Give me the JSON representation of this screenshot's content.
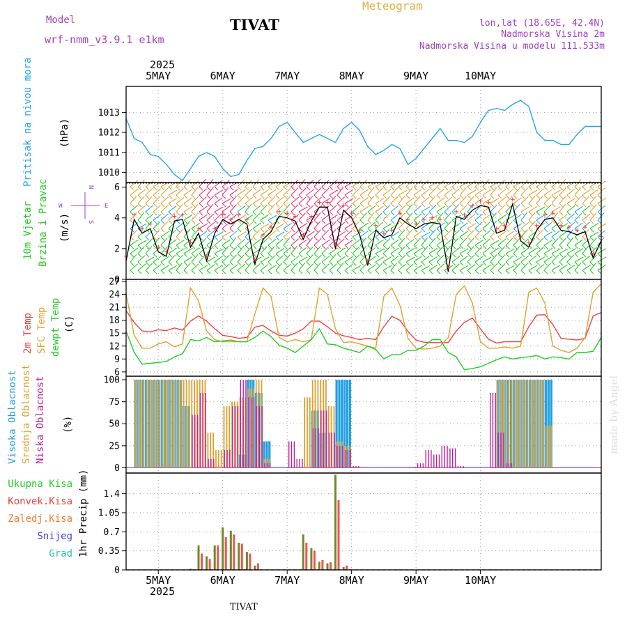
{
  "header": {
    "model_label": "Model",
    "model_name": "wrf-nmm_v3.9.1 e1km",
    "station": "TIVAT",
    "title": "Meteogram",
    "lonlat": "lon,lat (18.65E, 42.4N)",
    "elevation": "Nadmorska Visina 2m",
    "model_elevation": "Nadmorska Visina u modelu 111.533m",
    "footer_station": "TIVAT",
    "watermark": "made by Angel"
  },
  "colors": {
    "pressure": "#22a6e6",
    "wind_black": "#000000",
    "wind_red": "#ff3030",
    "temp_2m": "#ee4040",
    "temp_sfc": "#e0a030",
    "dewpoint": "#22cc22",
    "cloud_high": "#22a0e0",
    "cloud_mid": "#e0a030",
    "cloud_low": "#c0209a",
    "precip_total": "#6e8a28",
    "precip_conv": "#ee4040",
    "precip_frz": "#f08030",
    "snow": "#4040e0",
    "hail": "#30c0c0",
    "compass": "#a040c0"
  },
  "chart_data": [
    {
      "type": "line",
      "name": "pressure",
      "ylabel_1": "Pritisak na nivou mora",
      "ylabel_2": "(hPa)",
      "x_start": "2025-05-04T12:00",
      "x_step_hours": 3,
      "ylim": [
        1009.5,
        1014.3
      ],
      "yticks": [
        1010,
        1011,
        1012,
        1013
      ],
      "values": [
        1012.7,
        1011.7,
        1011.5,
        1010.9,
        1010.8,
        1010.4,
        1009.9,
        1009.6,
        1010.2,
        1010.8,
        1011.0,
        1010.8,
        1010.2,
        1009.8,
        1009.9,
        1010.6,
        1011.2,
        1011.3,
        1011.7,
        1012.3,
        1012.5,
        1012.0,
        1011.5,
        1011.7,
        1011.9,
        1011.7,
        1011.5,
        1012.2,
        1012.5,
        1012.1,
        1011.3,
        1010.9,
        1011.1,
        1011.4,
        1011.2,
        1010.4,
        1010.7,
        1011.2,
        1011.7,
        1012.2,
        1011.6,
        1011.6,
        1011.5,
        1011.8,
        1012.5,
        1013.1,
        1013.2,
        1013.1,
        1013.4,
        1013.6,
        1013.3,
        1012.0,
        1011.6,
        1011.6,
        1011.4,
        1011.4,
        1011.9,
        1012.3,
        1012.3,
        1012.3
      ]
    },
    {
      "type": "line",
      "name": "wind",
      "ylabel_1": "10m Vjetar",
      "ylabel_2": "Brzina i Pravac",
      "ylabel_3": "(m/s)",
      "compass": [
        "N",
        "W",
        "E",
        "S"
      ],
      "x_start": "2025-05-04T12:00",
      "x_step_hours": 3,
      "ylim": [
        0,
        6.3
      ],
      "yticks": [
        0,
        2,
        4,
        6
      ],
      "values": [
        1.2,
        3.9,
        3.0,
        3.3,
        1.8,
        1.5,
        3.8,
        3.9,
        2.1,
        3.0,
        1.2,
        3.0,
        3.9,
        3.6,
        3.9,
        3.6,
        1.0,
        2.6,
        3.1,
        4.1,
        4.0,
        3.8,
        2.6,
        3.8,
        4.7,
        4.7,
        2.0,
        4.5,
        4.0,
        2.9,
        0.9,
        3.2,
        2.7,
        2.9,
        4.0,
        3.6,
        3.3,
        3.6,
        3.7,
        3.6,
        0.5,
        4.1,
        3.9,
        4.5,
        4.8,
        4.7,
        3.0,
        3.2,
        4.9,
        2.5,
        2.1,
        3.2,
        3.9,
        4.0,
        3.2,
        3.1,
        2.9,
        3.1,
        1.4,
        2.5
      ]
    },
    {
      "type": "line",
      "name": "temperature",
      "ylabel_1": "2m Temp",
      "ylabel_2": "SFC Temp",
      "ylabel_3": "dewpt Temp",
      "ylabel_4": "(C)",
      "x_start": "2025-05-04T12:00",
      "x_step_hours": 3,
      "ylim": [
        5,
        27.5
      ],
      "yticks": [
        6,
        9,
        12,
        15,
        18,
        21,
        24,
        27
      ],
      "series": [
        {
          "name": "2m Temp",
          "values": [
            20.2,
            17.5,
            15.5,
            15.3,
            15.8,
            15.6,
            16.2,
            15.7,
            17.8,
            19.0,
            17.8,
            16.0,
            14.5,
            14.2,
            13.8,
            14.0,
            16.4,
            16.8,
            15.5,
            14.5,
            14.3,
            15.0,
            16.0,
            17.8,
            17.8,
            16.5,
            15.0,
            14.4,
            14.0,
            13.5,
            13.8,
            13.5,
            16.5,
            18.9,
            18.0,
            15.4,
            13.4,
            12.9,
            12.8,
            12.8,
            12.8,
            15.5,
            17.5,
            18.5,
            16.0,
            13.6,
            12.7,
            13.0,
            13.0,
            13.0,
            16.5,
            19.2,
            19.3,
            17.0,
            13.8,
            13.6,
            13.4,
            13.8,
            19.0,
            19.8
          ]
        },
        {
          "name": "SFC Temp",
          "values": [
            24.2,
            14.5,
            11.5,
            11.5,
            12.5,
            13.0,
            11.8,
            12.5,
            25.5,
            22.5,
            15.5,
            13.5,
            13.0,
            13.0,
            13.0,
            13.0,
            19.5,
            25.5,
            23.5,
            14.0,
            13.0,
            13.5,
            13.0,
            13.5,
            25.5,
            24.0,
            16.0,
            12.8,
            13.0,
            12.5,
            12.0,
            11.5,
            23.5,
            25.5,
            21.5,
            13.8,
            11.5,
            11.3,
            11.5,
            12.0,
            14.0,
            24.0,
            26.0,
            22.0,
            13.0,
            11.5,
            11.5,
            11.8,
            11.5,
            12.0,
            24.5,
            25.5,
            22.0,
            12.0,
            11.0,
            10.5,
            11.5,
            14.0,
            24.5,
            26.5
          ]
        },
        {
          "name": "dewpt Temp",
          "values": [
            15.5,
            10.5,
            7.8,
            8.0,
            8.2,
            8.4,
            9.5,
            10.2,
            13.5,
            13.2,
            14.0,
            13.0,
            13.2,
            13.4,
            13.0,
            13.0,
            14.0,
            15.5,
            14.2,
            12.2,
            11.5,
            10.5,
            12.0,
            13.5,
            16.0,
            12.5,
            12.3,
            11.5,
            11.0,
            10.5,
            12.0,
            11.2,
            9.0,
            10.0,
            10.0,
            11.0,
            11.0,
            12.0,
            13.5,
            13.5,
            10.5,
            9.5,
            6.5,
            6.8,
            7.2,
            8.0,
            8.8,
            9.5,
            9.0,
            9.3,
            9.5,
            9.8,
            9.0,
            9.5,
            9.3,
            9.0,
            10.5,
            10.5,
            10.8,
            14.0
          ]
        }
      ]
    },
    {
      "type": "bar",
      "name": "clouds",
      "ylabel_1": "Visoka Oblacnost",
      "ylabel_2": "Srednja Oblacnost",
      "ylabel_3": "Niska Oblacnost",
      "ylabel_4": "(%)",
      "x_start": "2025-05-04T12:00",
      "x_step_hours": 3,
      "ylim": [
        -6,
        104
      ],
      "yticks": [
        0,
        25,
        50,
        75,
        100
      ],
      "series": [
        {
          "name": "Visoka Oblacnost",
          "values": [
            0,
            100,
            100,
            100,
            100,
            100,
            100,
            70,
            0,
            0,
            0,
            0,
            0,
            0,
            15,
            100,
            85,
            30,
            0,
            0,
            0,
            0,
            0,
            65,
            40,
            0,
            100,
            100,
            0,
            0,
            0,
            0,
            0,
            0,
            0,
            0,
            0,
            0,
            0,
            0,
            0,
            0,
            0,
            0,
            0,
            0,
            100,
            100,
            100,
            100,
            100,
            100,
            100,
            0,
            0,
            0,
            0,
            0,
            0,
            0
          ]
        },
        {
          "name": "Srednja Oblacnost",
          "values": [
            0,
            100,
            100,
            100,
            100,
            100,
            100,
            100,
            100,
            100,
            40,
            20,
            70,
            75,
            80,
            90,
            100,
            10,
            0,
            0,
            0,
            0,
            80,
            100,
            100,
            70,
            30,
            25,
            0,
            0,
            0,
            0,
            0,
            0,
            0,
            0,
            0,
            0,
            0,
            0,
            0,
            0,
            0,
            0,
            0,
            0,
            100,
            100,
            100,
            100,
            100,
            100,
            48,
            0,
            0,
            0,
            0,
            0,
            0,
            0
          ]
        },
        {
          "name": "Niska Oblacnost",
          "values": [
            0,
            0,
            0,
            0,
            0,
            0,
            0,
            0,
            60,
            85,
            10,
            0,
            20,
            70,
            100,
            80,
            70,
            5,
            0,
            0,
            30,
            10,
            0,
            45,
            65,
            40,
            25,
            20,
            2,
            0,
            0,
            0,
            0,
            0,
            0,
            1,
            5,
            20,
            15,
            25,
            22,
            2,
            0,
            0,
            0,
            85,
            40,
            5,
            0,
            0,
            0,
            0,
            0,
            0,
            0,
            0,
            0,
            0,
            0,
            0
          ]
        }
      ]
    },
    {
      "type": "bar",
      "name": "precipitation",
      "ylabel": "1hr Precip (mm)",
      "legend": [
        "Ukupna Kisa",
        "Konvek.Kisa",
        "Zaledj.Kisa",
        "Snijeg",
        "Grad"
      ],
      "x_start": "2025-05-04T12:00",
      "x_step_hours": 3,
      "ylim": [
        0,
        1.78
      ],
      "yticks": [
        "0",
        "0.35",
        "0.7",
        "1.05",
        "1.4"
      ],
      "ytick_values": [
        0,
        0.35,
        0.7,
        1.05,
        1.4
      ],
      "series": [
        {
          "name": "Ukupna Kisa",
          "values": [
            0,
            0,
            0,
            0,
            0,
            0,
            0,
            0,
            0.02,
            0.45,
            0.25,
            0.45,
            0.78,
            0.72,
            0.5,
            0.33,
            0.08,
            0,
            0,
            0,
            0,
            0,
            0.65,
            0.4,
            0.15,
            0.12,
            1.75,
            0.05,
            0,
            0,
            0,
            0,
            0,
            0,
            0,
            0,
            0,
            0,
            0,
            0,
            0,
            0,
            0,
            0,
            0,
            0,
            0,
            0,
            0,
            0,
            0,
            0,
            0,
            0,
            0,
            0,
            0,
            0,
            0,
            0
          ]
        },
        {
          "name": "Konvek.Kisa",
          "values": [
            0,
            0,
            0,
            0,
            0,
            0,
            0,
            0,
            0.01,
            0.3,
            0.2,
            0.45,
            0.6,
            0.65,
            0.48,
            0.3,
            0.12,
            0,
            0,
            0,
            0,
            0,
            0.5,
            0.35,
            0.18,
            0.14,
            1.28,
            0.08,
            0,
            0,
            0,
            0,
            0,
            0,
            0,
            0,
            0,
            0,
            0,
            0,
            0,
            0,
            0,
            0,
            0,
            0,
            0,
            0,
            0,
            0,
            0,
            0,
            0,
            0,
            0,
            0,
            0,
            0,
            0,
            0
          ]
        }
      ]
    }
  ],
  "time_axis": {
    "year": "2025",
    "days": [
      "5MAY",
      "6MAY",
      "7MAY",
      "8MAY",
      "9MAY",
      "10MAY"
    ],
    "day_offsets_hours": [
      12,
      36,
      60,
      84,
      108,
      132
    ],
    "total_hours": 177
  }
}
